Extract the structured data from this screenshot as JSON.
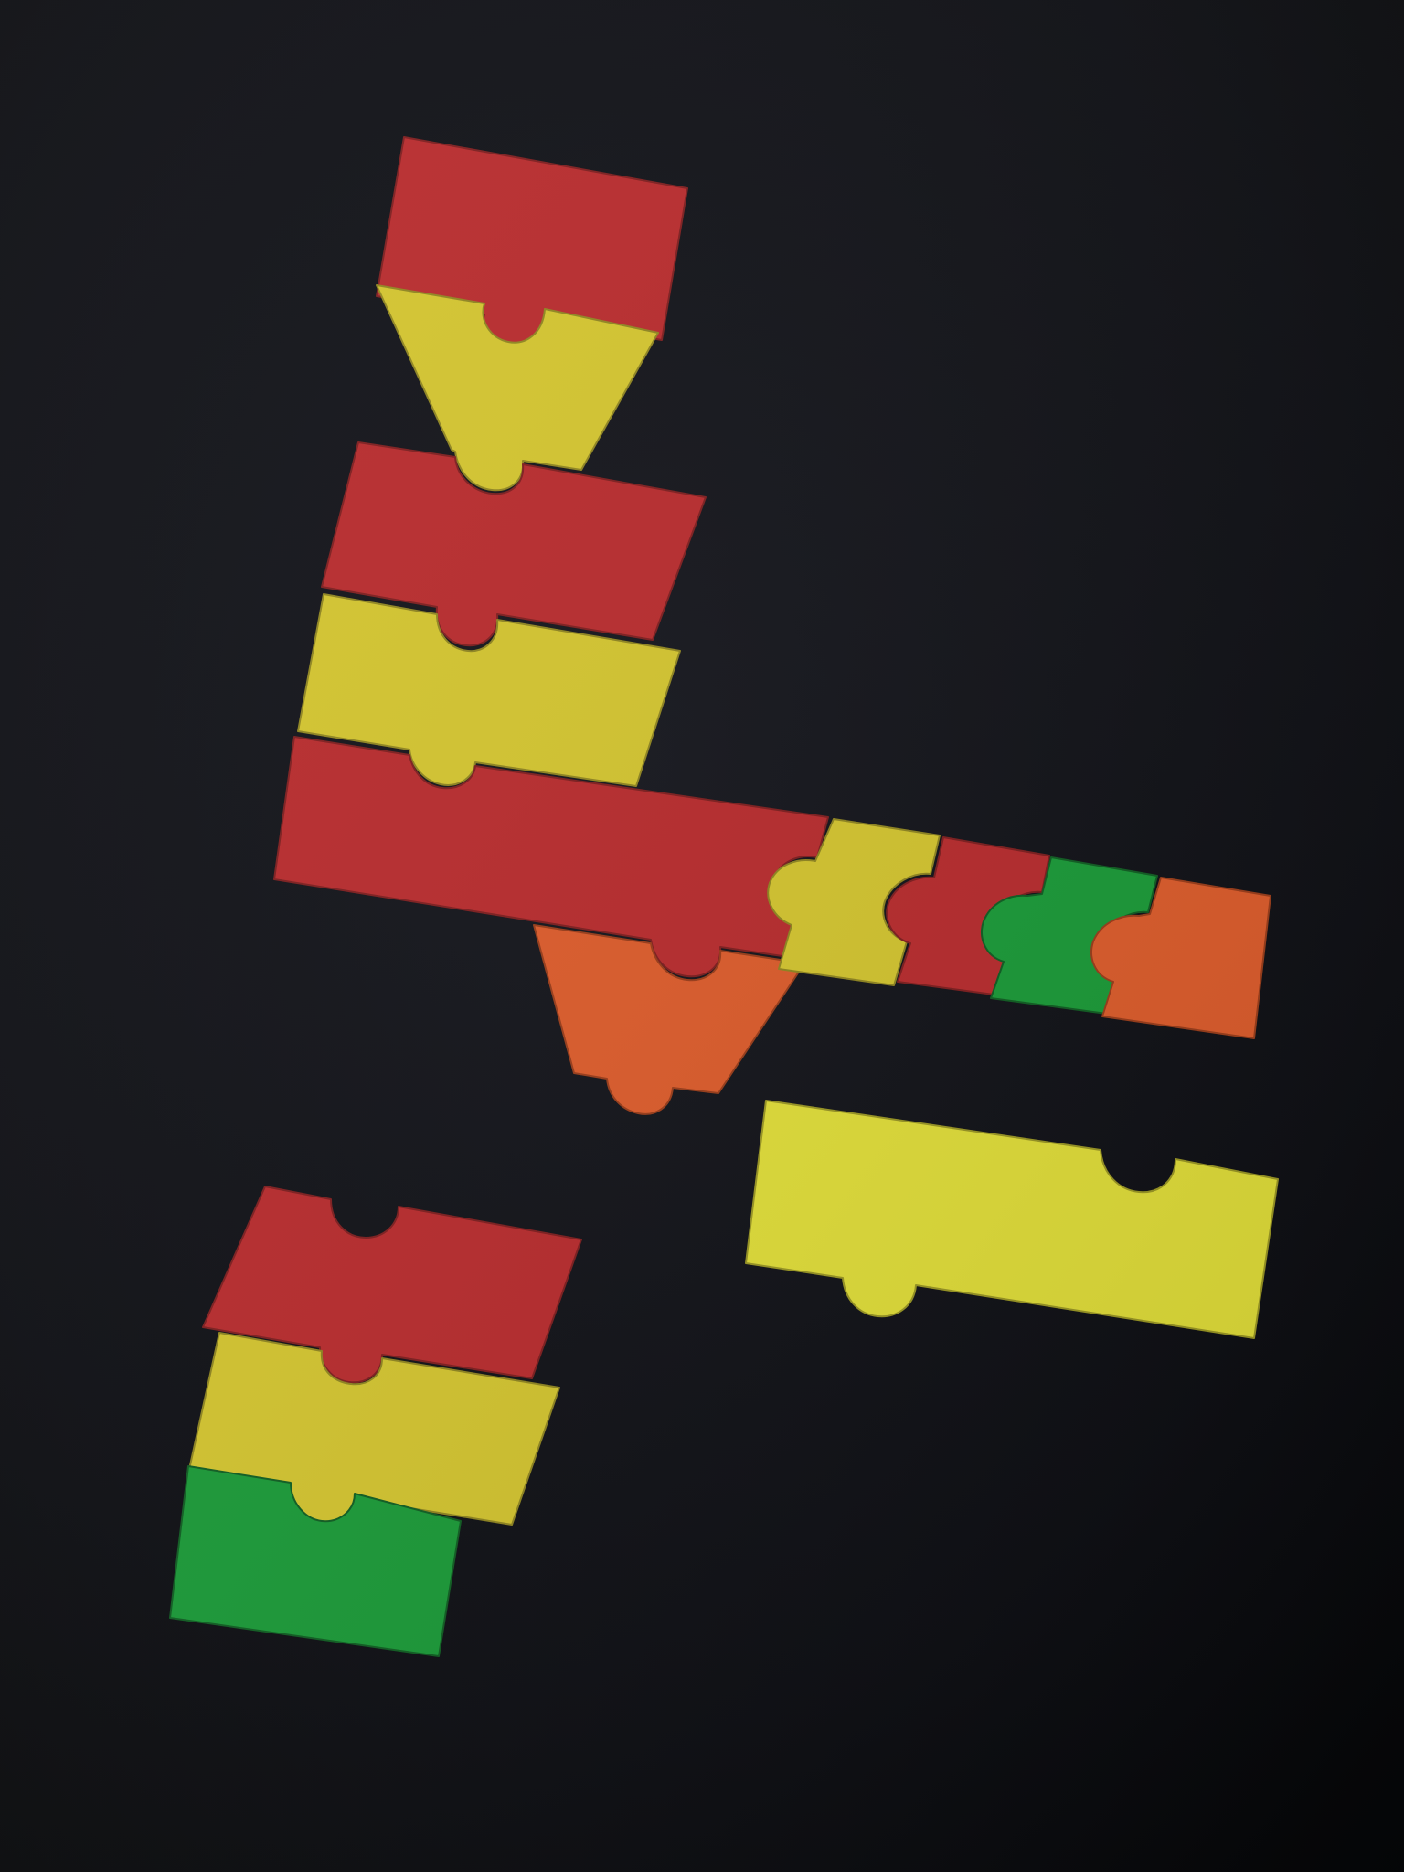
{
  "scene": {
    "description_label": "",
    "colors": {
      "cloth": "#0b0c12",
      "red": "#b8282a",
      "yellow": "#d4c52c",
      "bright_yellow": "#e2df36",
      "orange": "#de5a28",
      "green": "#179a35"
    },
    "pieces": [
      {
        "name": "top-red-trapezoid-piece",
        "color": "red"
      },
      {
        "name": "top-yellow-funnel-piece",
        "color": "yellow"
      },
      {
        "name": "middle-red-piece",
        "color": "red"
      },
      {
        "name": "middle-yellow-piece",
        "color": "yellow"
      },
      {
        "name": "long-red-bar-piece",
        "color": "red"
      },
      {
        "name": "orange-funnel-piece",
        "color": "orange"
      },
      {
        "name": "small-yellow-piece",
        "color": "yellow"
      },
      {
        "name": "small-red-piece",
        "color": "red"
      },
      {
        "name": "small-green-piece",
        "color": "green"
      },
      {
        "name": "small-orange-piece",
        "color": "orange"
      },
      {
        "name": "long-yellow-bar-piece",
        "color": "bright_yellow"
      },
      {
        "name": "bottom-red-piece",
        "color": "red"
      },
      {
        "name": "bottom-yellow-piece",
        "color": "yellow"
      },
      {
        "name": "bottom-green-piece",
        "color": "green"
      }
    ]
  }
}
